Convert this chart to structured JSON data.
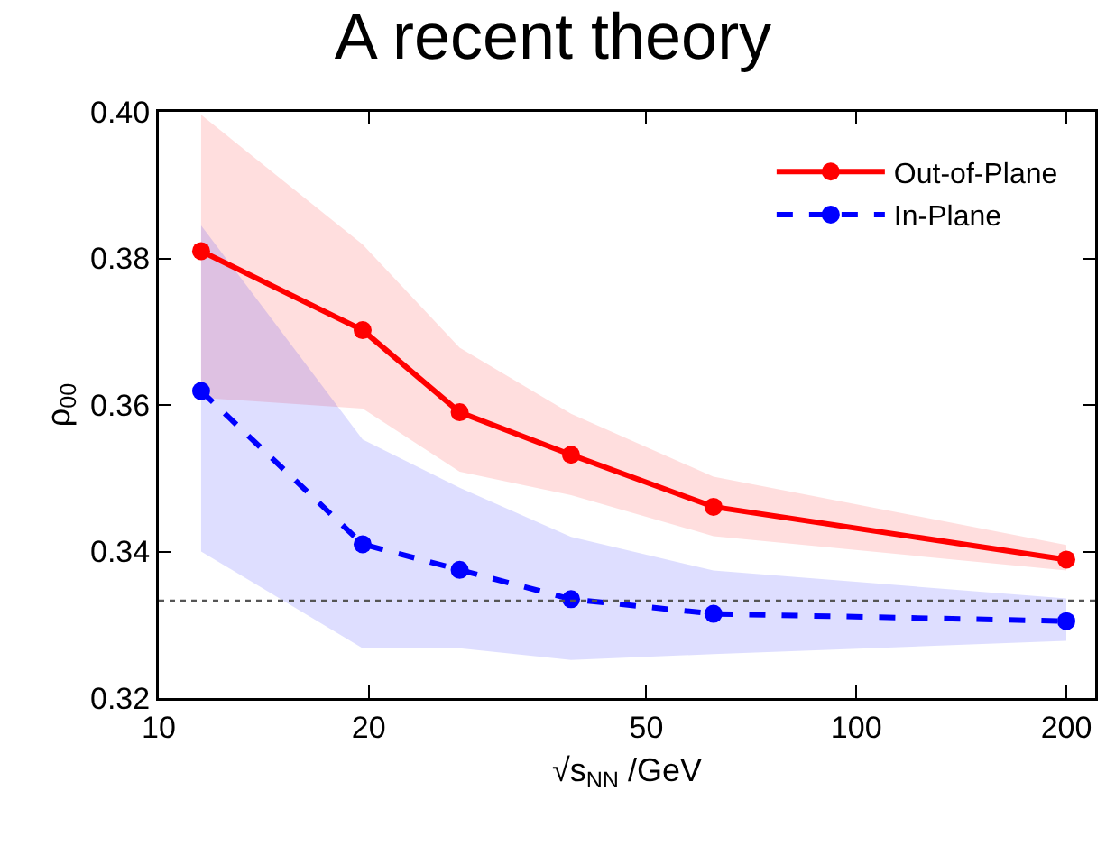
{
  "chart_data": {
    "type": "line",
    "title": "A recent theory",
    "xlabel": "√s$_{NN}$ /GeV",
    "ylabel": "ρ$_{00}$",
    "log": "x",
    "x": [
      11.5,
      19.6,
      27,
      39,
      62.4,
      200
    ],
    "xlim": [
      10,
      220
    ],
    "xticks": [
      10,
      20,
      50,
      100,
      200
    ],
    "ylim": [
      0.32,
      0.4
    ],
    "yticks": [
      0.32,
      0.34,
      0.36,
      0.38,
      {
        "value": 0.4,
        "label": "0.40"
      }
    ],
    "grid": false,
    "legend": "top right",
    "marker": "circle",
    "series": [
      {
        "name": "Out-of-Plane",
        "color": "#ff0000",
        "line_style": "solid",
        "values": [
          0.381,
          0.3702,
          0.359,
          0.3532,
          0.3461,
          0.3389
        ],
        "lower": [
          0.361,
          0.3595,
          0.3509,
          0.3477,
          0.3421,
          0.3374
        ],
        "upper": [
          0.3996,
          0.3819,
          0.3678,
          0.3588,
          0.3502,
          0.3409
        ]
      },
      {
        "name": "In-Plane",
        "color": "#0000ff",
        "line_style": "dashed",
        "values": [
          0.3619,
          0.341,
          0.3375,
          0.3335,
          0.3315,
          0.3305
        ],
        "lower": [
          0.34,
          0.3268,
          0.3268,
          0.3252,
          0.326,
          0.3278
        ],
        "upper": [
          0.3845,
          0.3553,
          0.3487,
          0.342,
          0.3374,
          0.3336
        ]
      }
    ],
    "ref_lines": [
      {
        "axis": "y",
        "value": 0.3333,
        "color": "#555555",
        "line_style": "dotted"
      }
    ]
  }
}
